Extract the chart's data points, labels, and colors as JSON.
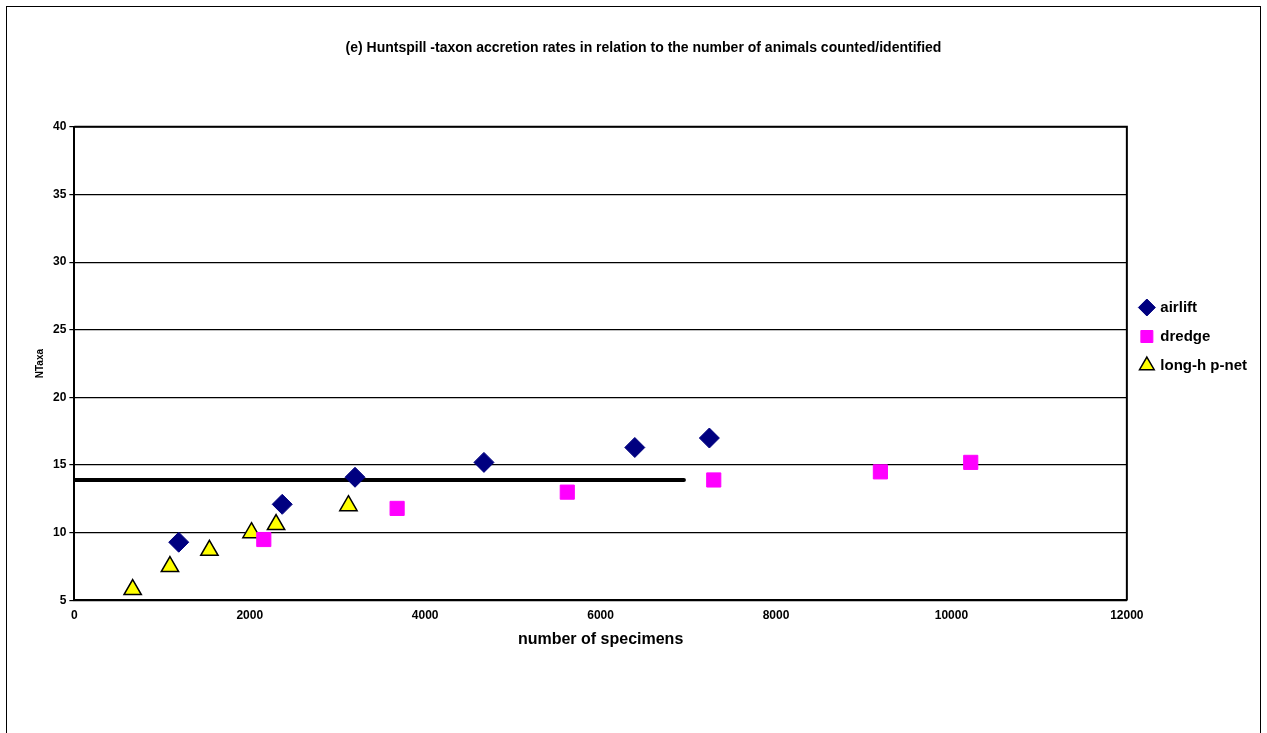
{
  "chart_data": {
    "type": "scatter",
    "title": "(e) Huntspill -taxon accretion rates in relation to the number of animals counted/identified",
    "xlabel": "number of specimens",
    "ylabel": "NTaxa",
    "series": [
      {
        "name": "airlift",
        "color": "#000080",
        "marker": "diamond",
        "x": [
          1190,
          2370,
          3200,
          4670,
          6390,
          7240
        ],
        "values": [
          9.3,
          12.1,
          14.1,
          15.2,
          16.3,
          17.0
        ]
      },
      {
        "name": "dredge",
        "color": "#ff00ff",
        "marker": "square",
        "x": [
          2160,
          3680,
          5620,
          7290,
          9190,
          10220
        ],
        "values": [
          9.5,
          11.8,
          13.0,
          13.9,
          14.5,
          15.2
        ]
      },
      {
        "name": "long-h p-net",
        "color": "#ffff00",
        "marker": "triangle",
        "x": [
          665,
          1090,
          1540,
          2020,
          2300,
          3125
        ],
        "values": [
          5.8,
          7.5,
          8.7,
          10.0,
          10.6,
          12.0
        ]
      },
      {
        "type": "line",
        "color": "#000000",
        "marker": "none",
        "x": [
          0,
          6950
        ],
        "values": [
          13.9,
          13.9
        ]
      }
    ],
    "xlim": [
      0,
      12000
    ],
    "xticks": [
      0,
      2000,
      4000,
      6000,
      8000,
      10000,
      12000
    ],
    "ylim": [
      5,
      40
    ],
    "yticks": [
      5,
      10,
      15,
      20,
      25,
      30,
      35,
      40
    ],
    "grid": "y",
    "legend": "right"
  }
}
